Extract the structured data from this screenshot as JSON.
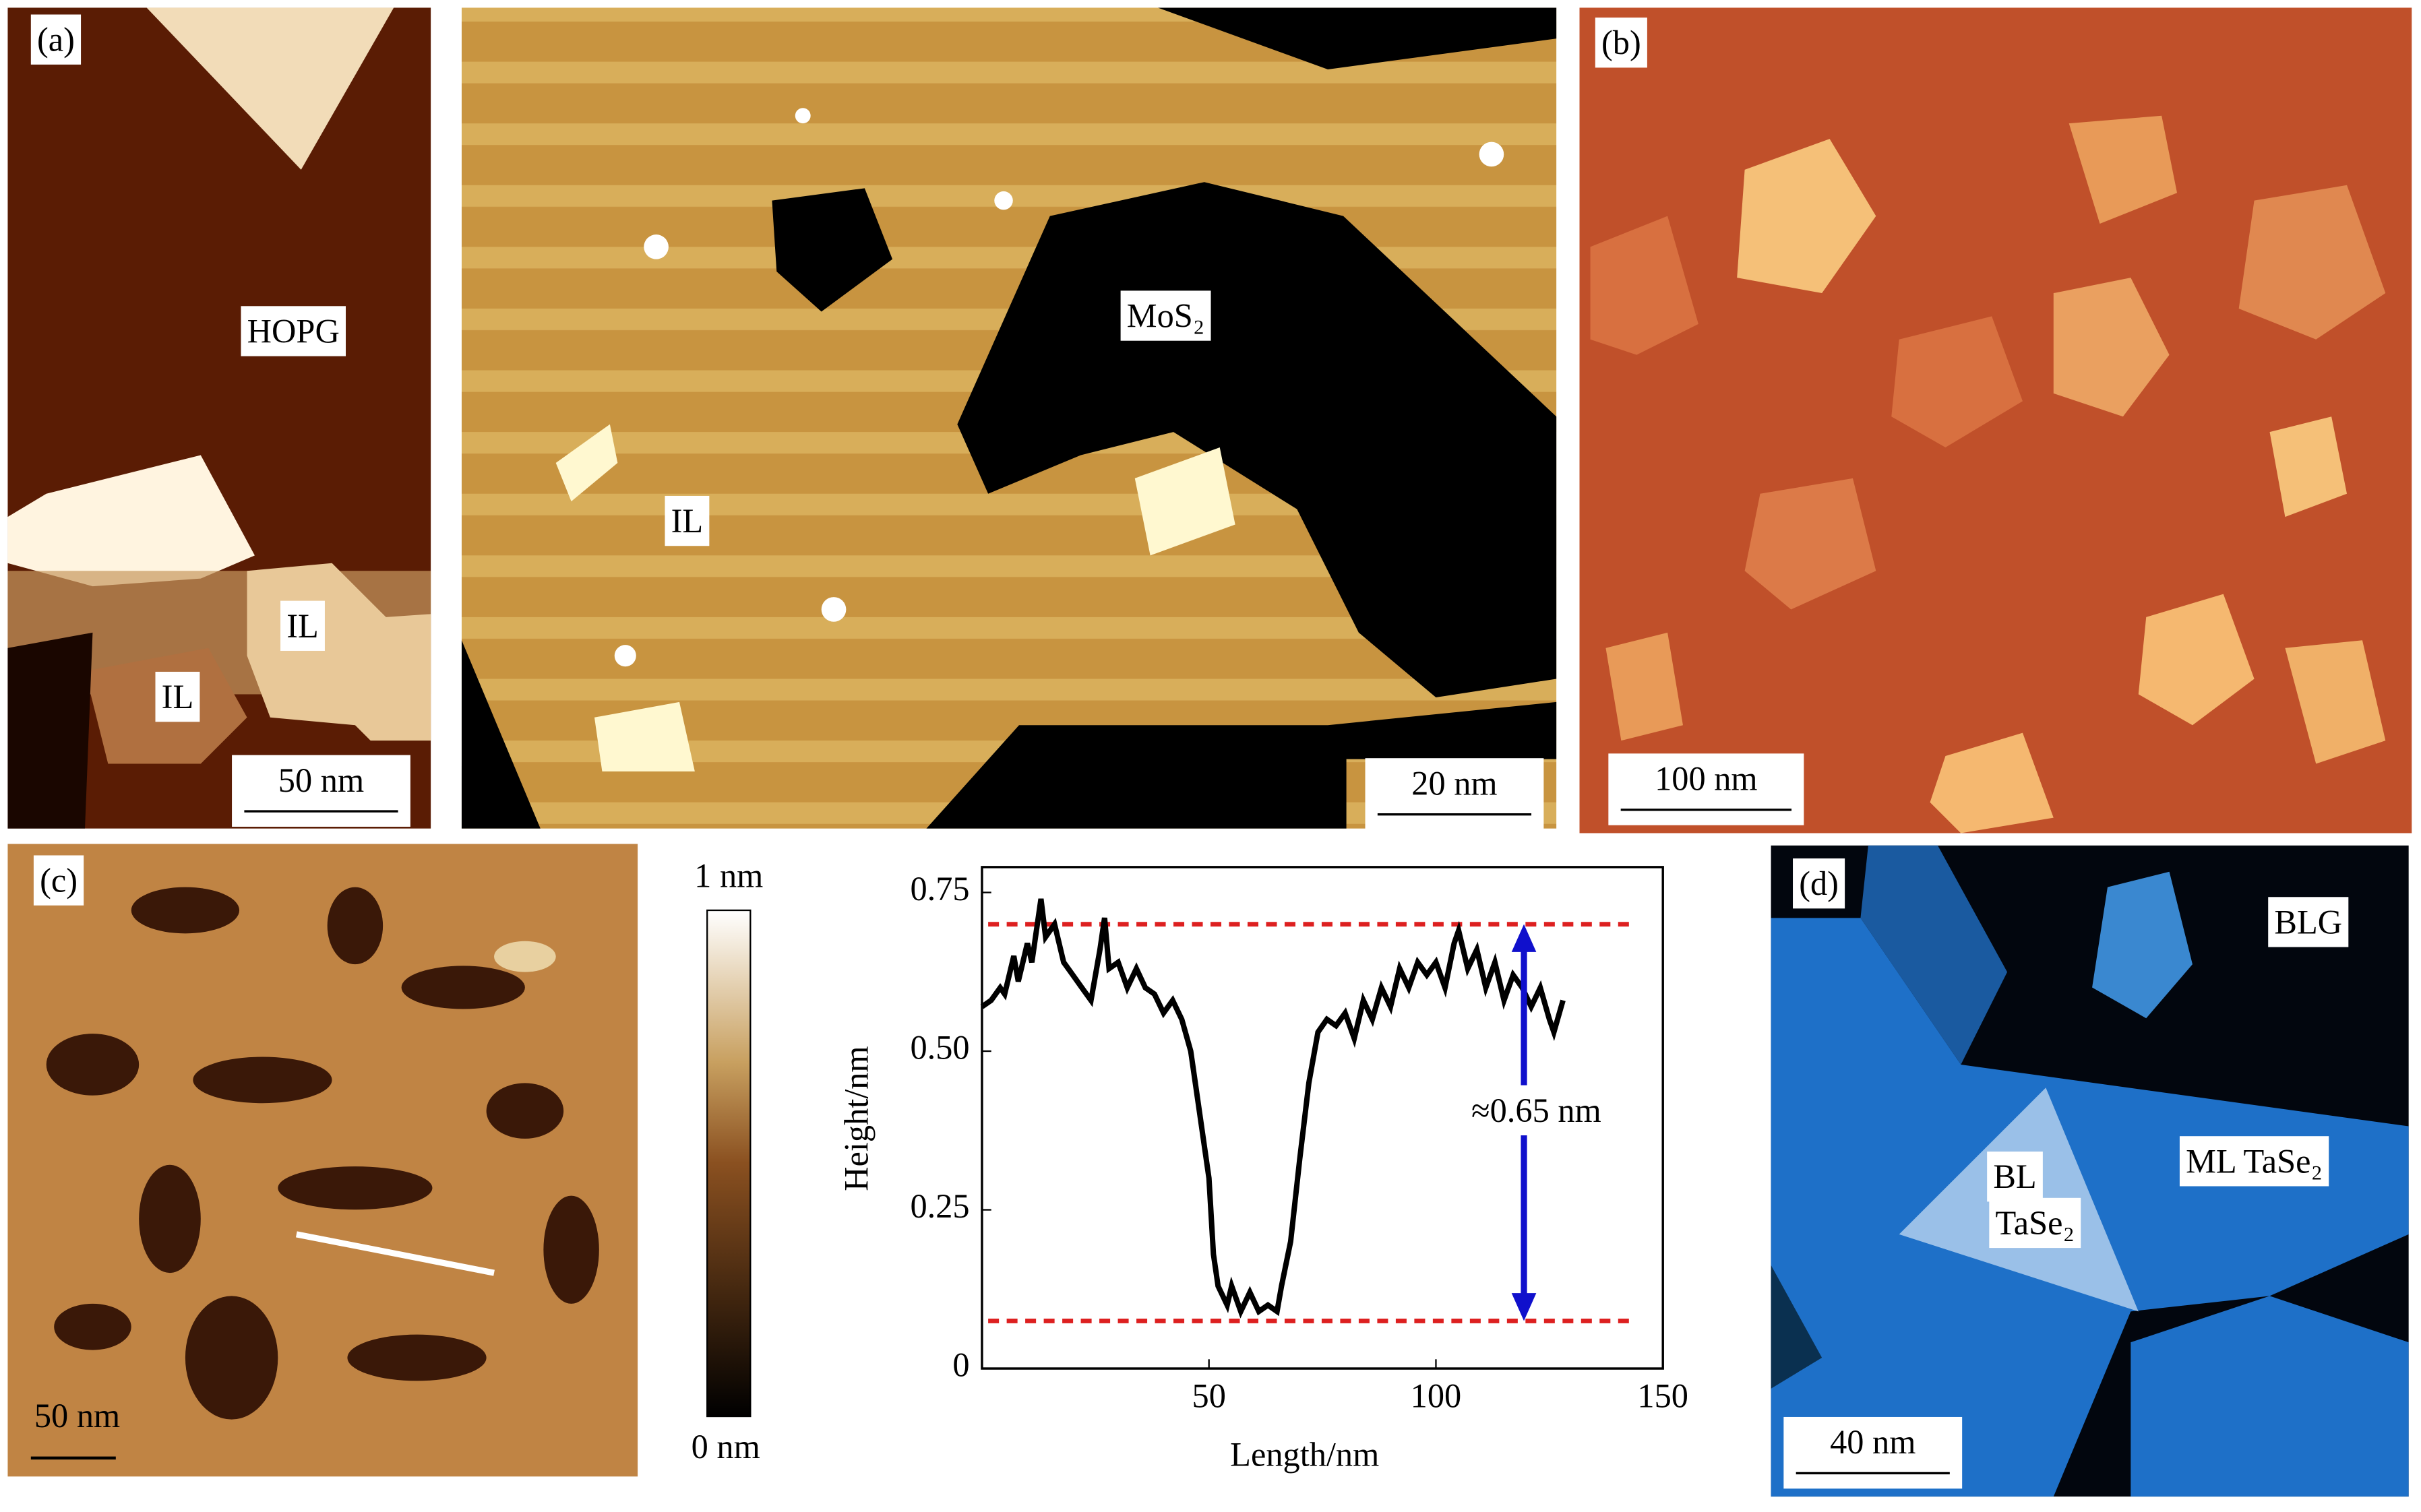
{
  "panels": {
    "a": {
      "label": "(a)",
      "labels": [
        "HOPG",
        "IL",
        "IL"
      ],
      "scale_bar": "50 nm"
    },
    "a_right": {
      "labels": [
        "MoS₂",
        "IL"
      ],
      "scale_bar": "20 nm"
    },
    "b": {
      "label": "(b)",
      "scale_bar": "100 nm"
    },
    "c": {
      "label": "(c)",
      "scale_bar": "50 nm",
      "colorbar_top": "1 nm",
      "colorbar_bottom": "0 nm"
    },
    "d": {
      "label": "(d)",
      "labels": [
        "BLG",
        "BL",
        "TaSe₂",
        "ML TaSe₂"
      ],
      "scale_bar": "40 nm"
    }
  },
  "chart_data": {
    "type": "line",
    "xlabel": "Length/nm",
    "ylabel": "Height/nm",
    "x": [
      0,
      2,
      4,
      5,
      7,
      8,
      10,
      11,
      13,
      14,
      16,
      18,
      20,
      22,
      24,
      26,
      27,
      28,
      30,
      32,
      34,
      36,
      38,
      40,
      42,
      44,
      46,
      48,
      50,
      51,
      52,
      54,
      55,
      57,
      59,
      61,
      63,
      65,
      66,
      68,
      70,
      72,
      74,
      76,
      78,
      80,
      82,
      84,
      86,
      88,
      90,
      92,
      94,
      96,
      98,
      100,
      102,
      104,
      105,
      107,
      109,
      111,
      113,
      115,
      117,
      119,
      121,
      123,
      125,
      126,
      128
    ],
    "values": [
      0.57,
      0.58,
      0.6,
      0.59,
      0.65,
      0.61,
      0.67,
      0.64,
      0.74,
      0.68,
      0.7,
      0.64,
      0.62,
      0.6,
      0.58,
      0.66,
      0.71,
      0.63,
      0.64,
      0.6,
      0.63,
      0.6,
      0.59,
      0.56,
      0.58,
      0.55,
      0.5,
      0.4,
      0.3,
      0.18,
      0.13,
      0.1,
      0.13,
      0.09,
      0.12,
      0.09,
      0.1,
      0.09,
      0.13,
      0.2,
      0.33,
      0.45,
      0.53,
      0.55,
      0.54,
      0.56,
      0.52,
      0.58,
      0.55,
      0.6,
      0.57,
      0.63,
      0.6,
      0.64,
      0.62,
      0.64,
      0.6,
      0.67,
      0.69,
      0.63,
      0.66,
      0.6,
      0.64,
      0.58,
      0.62,
      0.6,
      0.57,
      0.6,
      0.55,
      0.53,
      0.58
    ],
    "color": "#000000",
    "xlim": [
      0,
      150
    ],
    "ylim": [
      0,
      0.79
    ],
    "xticks": [
      50,
      100,
      150
    ],
    "yticks": [
      0,
      0.25,
      {
        "value": 0.5,
        "label": "0.50"
      },
      0.75
    ],
    "reference_lines": [
      0.7,
      0.075
    ],
    "reference_color": "#dd2020",
    "annotation": "≈0.65 nm",
    "annotation_color": "#1010cc"
  }
}
